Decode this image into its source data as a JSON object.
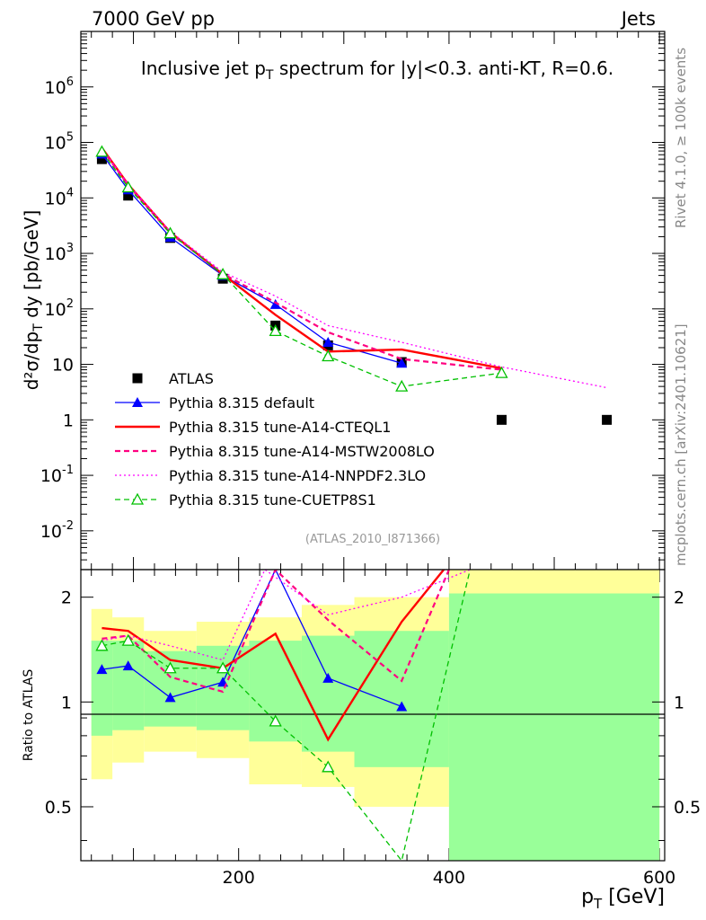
{
  "header": {
    "energy_label": "7000 GeV pp",
    "process_label": "Jets"
  },
  "side_text": {
    "rivet": "Rivet 4.1.0, ≥ 100k events",
    "mcplots": "mcplots.cern.ch [arXiv:2401.10621]"
  },
  "chart_data": [
    {
      "type": "line",
      "title": "Inclusive jet p_T spectrum for |y|<0.3.  anti-KT, R=0.6.",
      "analysis_tag": "(ATLAS_2010_I871366)",
      "ylabel": "d²σ/dp_T dy [pb/GeV]",
      "yscale": "log",
      "ylim": [
        0.002,
        10000000
      ],
      "y_ticks": [
        "10^-2",
        "10^-1",
        "1",
        "10",
        "10^2",
        "10^3",
        "10^4",
        "10^5",
        "10^6"
      ],
      "xlim": [
        50,
        605
      ],
      "legend_position": "bottom-left",
      "series": [
        {
          "name": "ATLAS",
          "color": "#000000",
          "style": "marker-square",
          "x": [
            70,
            95,
            135,
            185,
            235,
            285,
            355,
            450,
            550
          ],
          "y": [
            50000,
            11000,
            1900,
            350,
            50,
            22,
            11,
            1,
            1
          ]
        },
        {
          "name": "Pythia 8.315 default",
          "color": "#0000ff",
          "style": "solid-triangle",
          "x": [
            70,
            95,
            135,
            185,
            235,
            285,
            355
          ],
          "y": [
            62000,
            14000,
            1950,
            400,
            120,
            25,
            10.5
          ]
        },
        {
          "name": "Pythia 8.315 tune-A14-CTEQL1",
          "color": "#ff0000",
          "style": "solid-thick",
          "x": [
            70,
            95,
            135,
            185,
            235,
            285,
            355,
            450
          ],
          "y": [
            80000,
            17500,
            2400,
            420,
            78,
            17,
            18.5,
            8.5
          ]
        },
        {
          "name": "Pythia 8.315 tune-A14-MSTW2008LO",
          "color": "#ff0080",
          "style": "dashed",
          "x": [
            70,
            95,
            135,
            185,
            235,
            285,
            355,
            450
          ],
          "y": [
            76000,
            17000,
            2300,
            430,
            130,
            38,
            12.5,
            8
          ]
        },
        {
          "name": "Pythia 8.315 tune-A14-NNPDF2.3LO",
          "color": "#ff00ff",
          "style": "dotted",
          "x": [
            70,
            95,
            135,
            185,
            235,
            285,
            355,
            450,
            550
          ],
          "y": [
            78000,
            17500,
            2500,
            460,
            170,
            50,
            25,
            9,
            3.8
          ]
        },
        {
          "name": "Pythia 8.315 tune-CUETP8S1",
          "color": "#00c000",
          "style": "dashed-open-triangle",
          "x": [
            70,
            95,
            135,
            185,
            235,
            285,
            355,
            450
          ],
          "y": [
            68000,
            15500,
            2300,
            420,
            40,
            14,
            4,
            7
          ]
        }
      ]
    },
    {
      "type": "line",
      "ylabel": "Ratio to ATLAS",
      "xlabel": "p_T [GeV]",
      "yscale": "log",
      "ylim": [
        0.35,
        2.4
      ],
      "y_ticks": [
        "0.5",
        "1",
        "2"
      ],
      "x_ticks": [
        "200",
        "400",
        "600"
      ],
      "xlim": [
        50,
        605
      ],
      "bands": {
        "yellow": [
          {
            "x": [
              60,
              80
            ],
            "y": [
              0.6,
              1.85
            ]
          },
          {
            "x": [
              80,
              110
            ],
            "y": [
              0.67,
              1.75
            ]
          },
          {
            "x": [
              110,
              160
            ],
            "y": [
              0.72,
              1.6
            ]
          },
          {
            "x": [
              160,
              210
            ],
            "y": [
              0.69,
              1.7
            ]
          },
          {
            "x": [
              210,
              260
            ],
            "y": [
              0.58,
              1.75
            ]
          },
          {
            "x": [
              260,
              310
            ],
            "y": [
              0.57,
              1.9
            ]
          },
          {
            "x": [
              310,
              400
            ],
            "y": [
              0.5,
              2.0
            ]
          },
          {
            "x": [
              400,
              600
            ],
            "y": [
              0.3,
              3.0
            ]
          }
        ],
        "green": [
          {
            "x": [
              60,
              80
            ],
            "y": [
              0.8,
              1.5
            ]
          },
          {
            "x": [
              80,
              110
            ],
            "y": [
              0.83,
              1.5
            ]
          },
          {
            "x": [
              110,
              160
            ],
            "y": [
              0.85,
              1.4
            ]
          },
          {
            "x": [
              160,
              210
            ],
            "y": [
              0.83,
              1.45
            ]
          },
          {
            "x": [
              210,
              260
            ],
            "y": [
              0.77,
              1.5
            ]
          },
          {
            "x": [
              260,
              310
            ],
            "y": [
              0.72,
              1.55
            ]
          },
          {
            "x": [
              310,
              400
            ],
            "y": [
              0.65,
              1.6
            ]
          },
          {
            "x": [
              400,
              600
            ],
            "y": [
              0.3,
              2.05
            ]
          }
        ]
      },
      "series": [
        {
          "name": "Pythia 8.315 default",
          "color": "#0000ff",
          "x": [
            70,
            95,
            135,
            185,
            235,
            285,
            355
          ],
          "y": [
            1.24,
            1.27,
            1.03,
            1.14,
            2.4,
            1.17,
            0.97
          ]
        },
        {
          "name": "Pythia 8.315 tune-A14-CTEQL1",
          "color": "#ff0000",
          "x": [
            70,
            95,
            135,
            185,
            235,
            285,
            355,
            395
          ],
          "y": [
            1.63,
            1.6,
            1.32,
            1.25,
            1.57,
            0.78,
            1.7,
            2.4
          ]
        },
        {
          "name": "Pythia 8.315 tune-A14-MSTW2008LO",
          "color": "#ff0080",
          "x": [
            70,
            95,
            135,
            185,
            235,
            285,
            355,
            400
          ],
          "y": [
            1.52,
            1.55,
            1.18,
            1.07,
            2.4,
            1.72,
            1.15,
            2.4
          ]
        },
        {
          "name": "Pythia 8.315 tune-A14-NNPDF2.3LO",
          "color": "#ff00ff",
          "x": [
            70,
            95,
            135,
            185,
            225,
            285,
            355,
            420
          ],
          "y": [
            1.5,
            1.55,
            1.45,
            1.32,
            2.4,
            1.78,
            2.0,
            2.4
          ]
        },
        {
          "name": "Pythia 8.315 tune-CUETP8S1",
          "color": "#00c000",
          "x": [
            70,
            95,
            135,
            185,
            235,
            285,
            355,
            420
          ],
          "y": [
            1.45,
            1.5,
            1.25,
            1.25,
            0.88,
            0.65,
            0.35,
            2.4
          ]
        }
      ]
    }
  ]
}
